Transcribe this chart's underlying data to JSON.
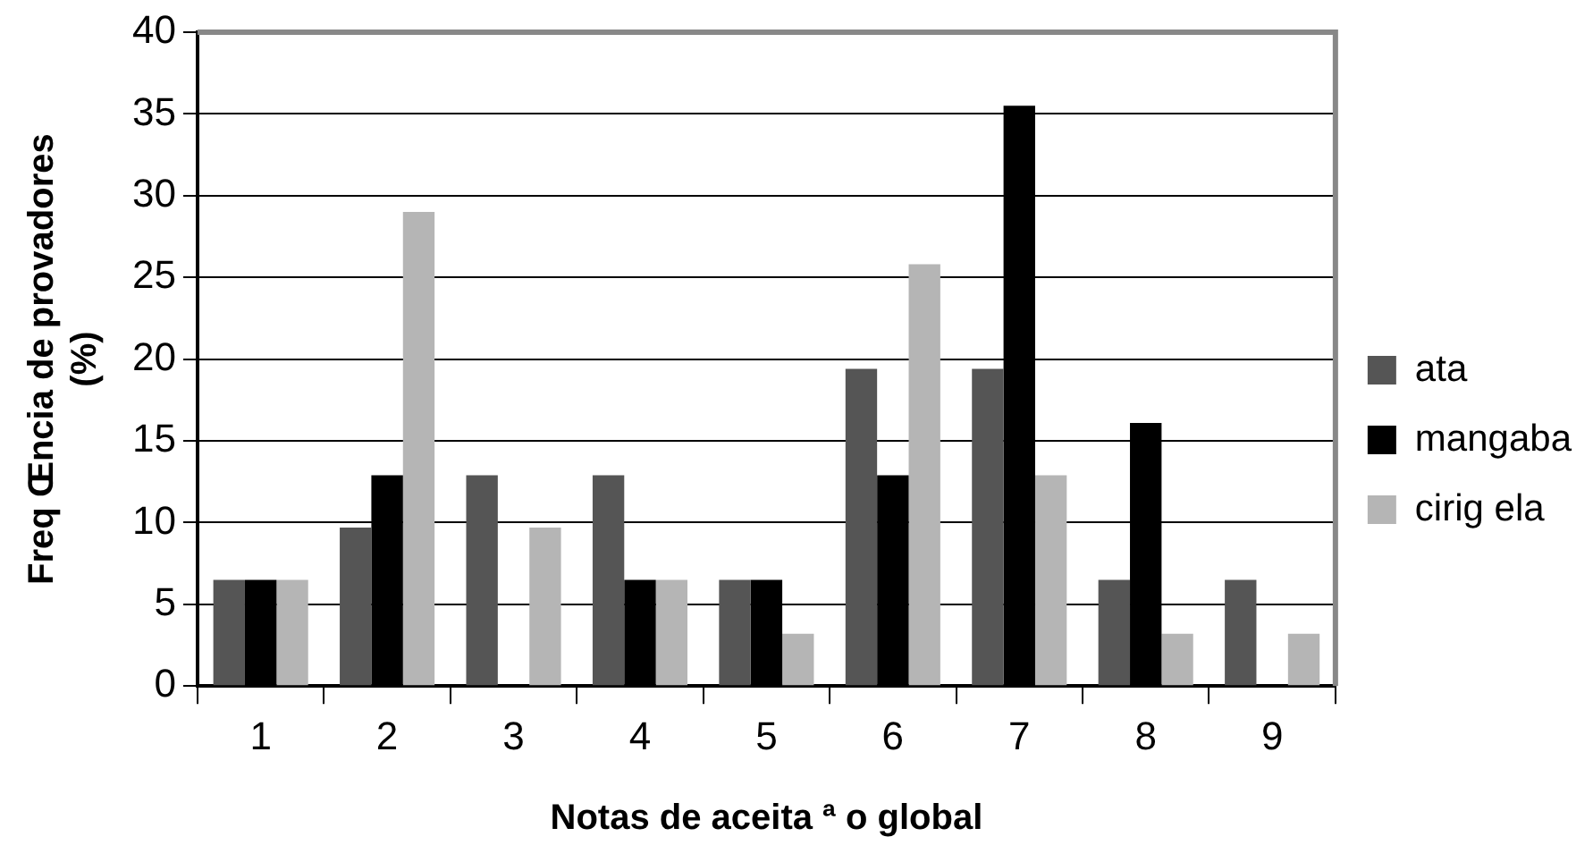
{
  "chart_data": {
    "type": "bar",
    "xlabel": "Notas de aceita ª o global",
    "ylabel": "Freq Œncia de provadores\n(%)",
    "categories": [
      "1",
      "2",
      "3",
      "4",
      "5",
      "6",
      "7",
      "8",
      "9"
    ],
    "series": [
      {
        "name": "ata",
        "color": "#555555",
        "values": [
          6.5,
          9.7,
          12.9,
          12.9,
          6.5,
          19.4,
          19.4,
          6.5,
          6.5
        ]
      },
      {
        "name": "mangaba",
        "color": "#000000",
        "values": [
          6.5,
          12.9,
          0,
          6.5,
          6.5,
          12.9,
          35.5,
          16.1,
          0
        ]
      },
      {
        "name": "cirig ela",
        "color": "#b5b5b5",
        "values": [
          6.5,
          29,
          9.7,
          6.5,
          3.2,
          25.8,
          12.9,
          3.2,
          3.2
        ]
      }
    ],
    "ylim": [
      0,
      40
    ],
    "yticks": [
      0,
      5,
      10,
      15,
      20,
      25,
      30,
      35,
      40
    ],
    "grid": "y",
    "legend": "right"
  }
}
